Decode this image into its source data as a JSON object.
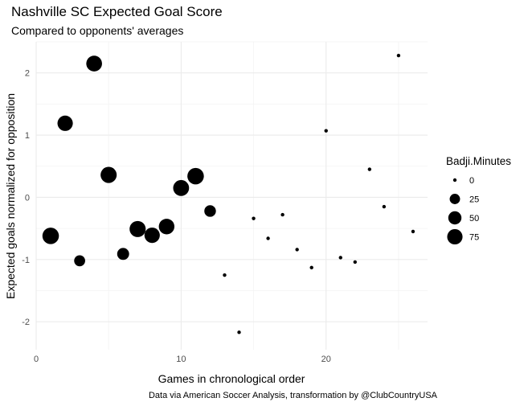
{
  "chart_data": {
    "type": "scatter",
    "title": "Nashville SC Expected Goal Score",
    "subtitle": "Compared to opponents' averages",
    "xlabel": "Games in chronological order",
    "ylabel": "Expected goals normalized for opposition",
    "caption": "Data via American Soccer Analysis, transformation by @ClubCountryUSA",
    "xlim": [
      0,
      27
    ],
    "ylim": [
      -2.45,
      2.5
    ],
    "xticks": [
      0,
      10,
      20
    ],
    "yticks": [
      -2,
      -1,
      0,
      1,
      2
    ],
    "grid": true,
    "point_color": "#000000",
    "legend": {
      "title": "Badji.Minutes",
      "position": "right",
      "entries": [
        {
          "label": "0",
          "value": 0
        },
        {
          "label": "25",
          "value": 25
        },
        {
          "label": "50",
          "value": 50
        },
        {
          "label": "75",
          "value": 75
        }
      ]
    },
    "points": [
      {
        "x": 1,
        "y": -0.62,
        "size": 90
      },
      {
        "x": 2,
        "y": 1.19,
        "size": 75
      },
      {
        "x": 3,
        "y": -1.02,
        "size": 30
      },
      {
        "x": 4,
        "y": 2.15,
        "size": 80
      },
      {
        "x": 5,
        "y": 0.36,
        "size": 85
      },
      {
        "x": 6,
        "y": -0.91,
        "size": 38
      },
      {
        "x": 7,
        "y": -0.51,
        "size": 85
      },
      {
        "x": 8,
        "y": -0.61,
        "size": 75
      },
      {
        "x": 9,
        "y": -0.47,
        "size": 78
      },
      {
        "x": 10,
        "y": 0.15,
        "size": 82
      },
      {
        "x": 11,
        "y": 0.34,
        "size": 90
      },
      {
        "x": 12,
        "y": -0.22,
        "size": 35
      },
      {
        "x": 13,
        "y": -1.25,
        "size": 0
      },
      {
        "x": 14,
        "y": -2.17,
        "size": 0
      },
      {
        "x": 15,
        "y": -0.34,
        "size": 0
      },
      {
        "x": 16,
        "y": -0.66,
        "size": 0
      },
      {
        "x": 17,
        "y": -0.28,
        "size": 0
      },
      {
        "x": 18,
        "y": -0.84,
        "size": 0
      },
      {
        "x": 19,
        "y": -1.13,
        "size": 0
      },
      {
        "x": 20,
        "y": 1.07,
        "size": 0
      },
      {
        "x": 21,
        "y": -0.97,
        "size": 0
      },
      {
        "x": 22,
        "y": -1.04,
        "size": 0
      },
      {
        "x": 23,
        "y": 0.45,
        "size": 0
      },
      {
        "x": 24,
        "y": -0.15,
        "size": 0
      },
      {
        "x": 25,
        "y": 2.28,
        "size": 0
      },
      {
        "x": 26,
        "y": -0.55,
        "size": 0
      }
    ]
  }
}
